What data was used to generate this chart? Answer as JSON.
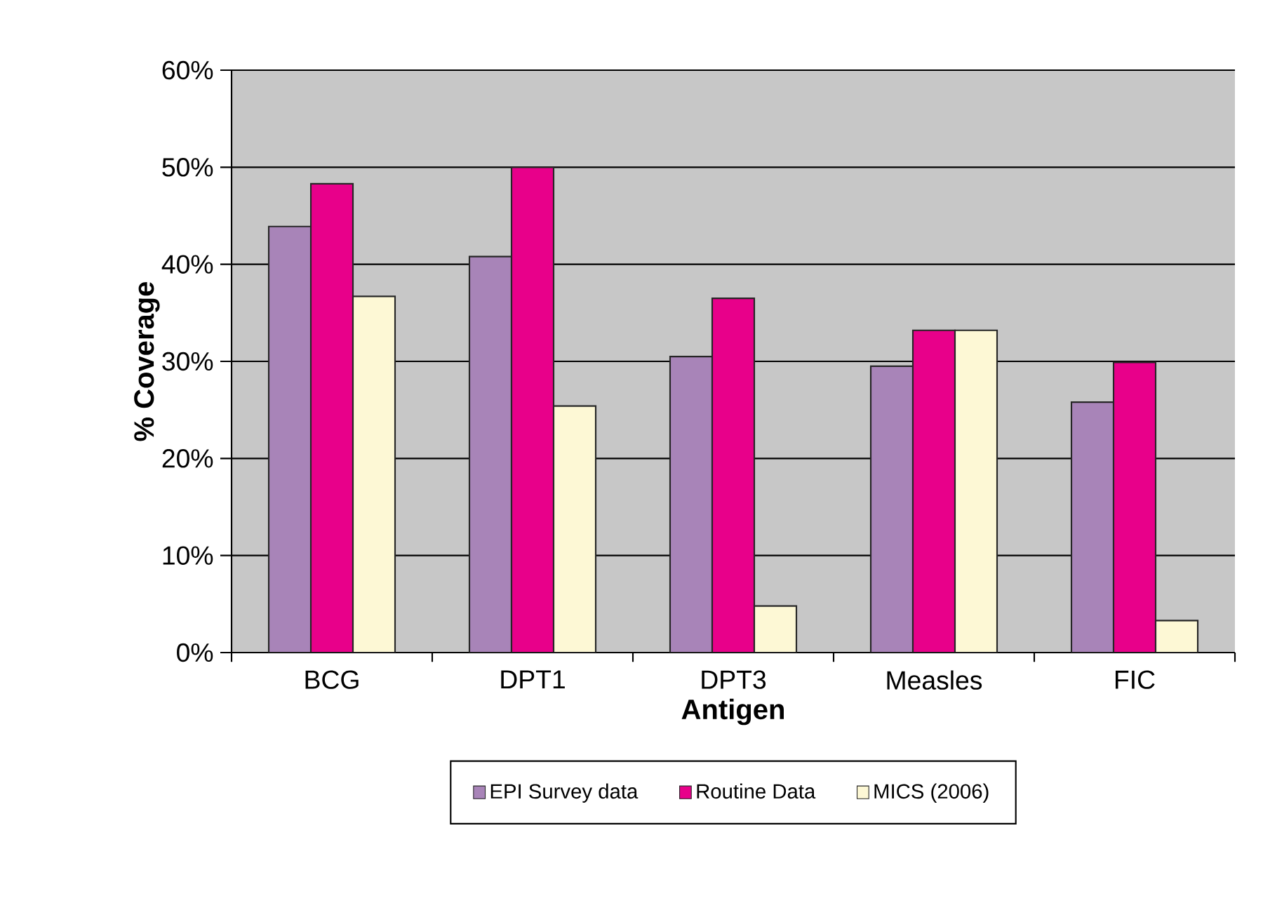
{
  "chart_data": {
    "type": "bar",
    "xlabel": "Antigen",
    "ylabel": "% Coverage",
    "categories": [
      "BCG",
      "DPT1",
      "DPT3",
      "Measles",
      "FIC"
    ],
    "series": [
      {
        "name": "EPI Survey data",
        "color": "#a884b8",
        "values": [
          43.9,
          40.8,
          30.5,
          29.5,
          25.8
        ]
      },
      {
        "name": "Routine Data",
        "color": "#e8008a",
        "values": [
          48.3,
          50,
          36.5,
          33.2,
          29.9
        ]
      },
      {
        "name": "MICS (2006)",
        "color": "#fdf8d5",
        "values": [
          36.7,
          25.4,
          4.8,
          33.2,
          3.3
        ]
      }
    ],
    "ylim": [
      0,
      60
    ],
    "yticks": [
      {
        "value": 0,
        "label": "0%"
      },
      {
        "value": 10,
        "label": "10%"
      },
      {
        "value": 20,
        "label": "20%"
      },
      {
        "value": 30,
        "label": "30%"
      },
      {
        "value": 40,
        "label": "40%"
      },
      {
        "value": 50,
        "label": "50%"
      },
      {
        "value": 60,
        "label": "60%"
      }
    ],
    "grid": "y",
    "legend": "bottom"
  }
}
